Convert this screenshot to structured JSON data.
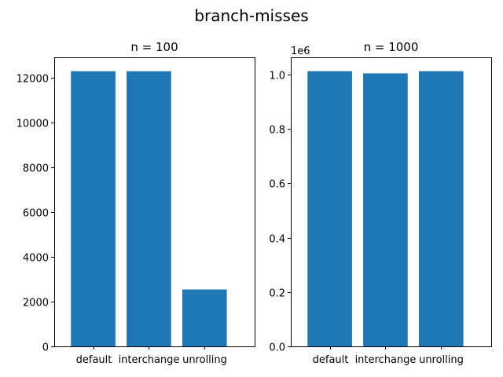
{
  "figure": {
    "suptitle": "branch-misses"
  },
  "colors": {
    "bar": "#1f77b4",
    "axes": "#000000",
    "background": "#ffffff"
  },
  "chart_data": [
    {
      "type": "bar",
      "title": "n = 100",
      "categories": [
        "default",
        "interchange",
        "unrolling"
      ],
      "values": [
        12280,
        12280,
        2540
      ],
      "ylim": [
        0,
        12900
      ],
      "yticks": [
        0,
        2000,
        4000,
        6000,
        8000,
        10000,
        12000
      ],
      "ytick_labels": [
        "0",
        "2000",
        "4000",
        "6000",
        "8000",
        "10000",
        "12000"
      ],
      "y_offset_label": "",
      "grid": false,
      "xlabel": "",
      "ylabel": ""
    },
    {
      "type": "bar",
      "title": "n = 1000",
      "categories": [
        "default",
        "interchange",
        "unrolling"
      ],
      "values": [
        1013000,
        1005000,
        1013000
      ],
      "ylim": [
        0,
        1064000
      ],
      "yticks": [
        0,
        200000,
        400000,
        600000,
        800000,
        1000000
      ],
      "ytick_labels": [
        "0.0",
        "0.2",
        "0.4",
        "0.6",
        "0.8",
        "1.0"
      ],
      "y_offset_label": "1e6",
      "grid": false,
      "xlabel": "",
      "ylabel": ""
    }
  ]
}
